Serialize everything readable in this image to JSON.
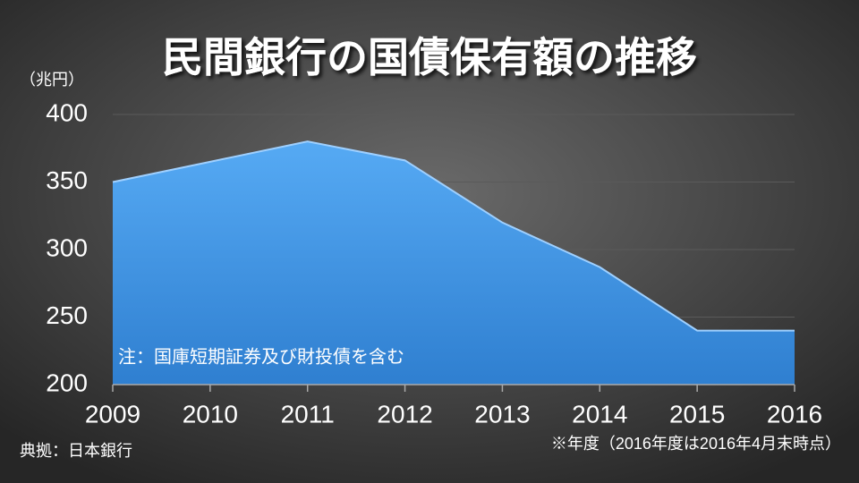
{
  "chart_data": {
    "type": "area",
    "title": "民間銀行の国債保有額の推移",
    "unit_label": "（兆円）",
    "categories": [
      "2009",
      "2010",
      "2011",
      "2012",
      "2013",
      "2014",
      "2015",
      "2016"
    ],
    "values": [
      350,
      365,
      380,
      366,
      320,
      287,
      240,
      240
    ],
    "color": "#4aa0ee",
    "ylim": [
      200,
      400
    ],
    "yticks": [
      200,
      250,
      300,
      350,
      400
    ],
    "grid": true,
    "note": "注：国庫短期証券及び財投債を含む",
    "source": "典拠：日本銀行",
    "footnote": "※年度（2016年度は2016年4月末時点）"
  }
}
